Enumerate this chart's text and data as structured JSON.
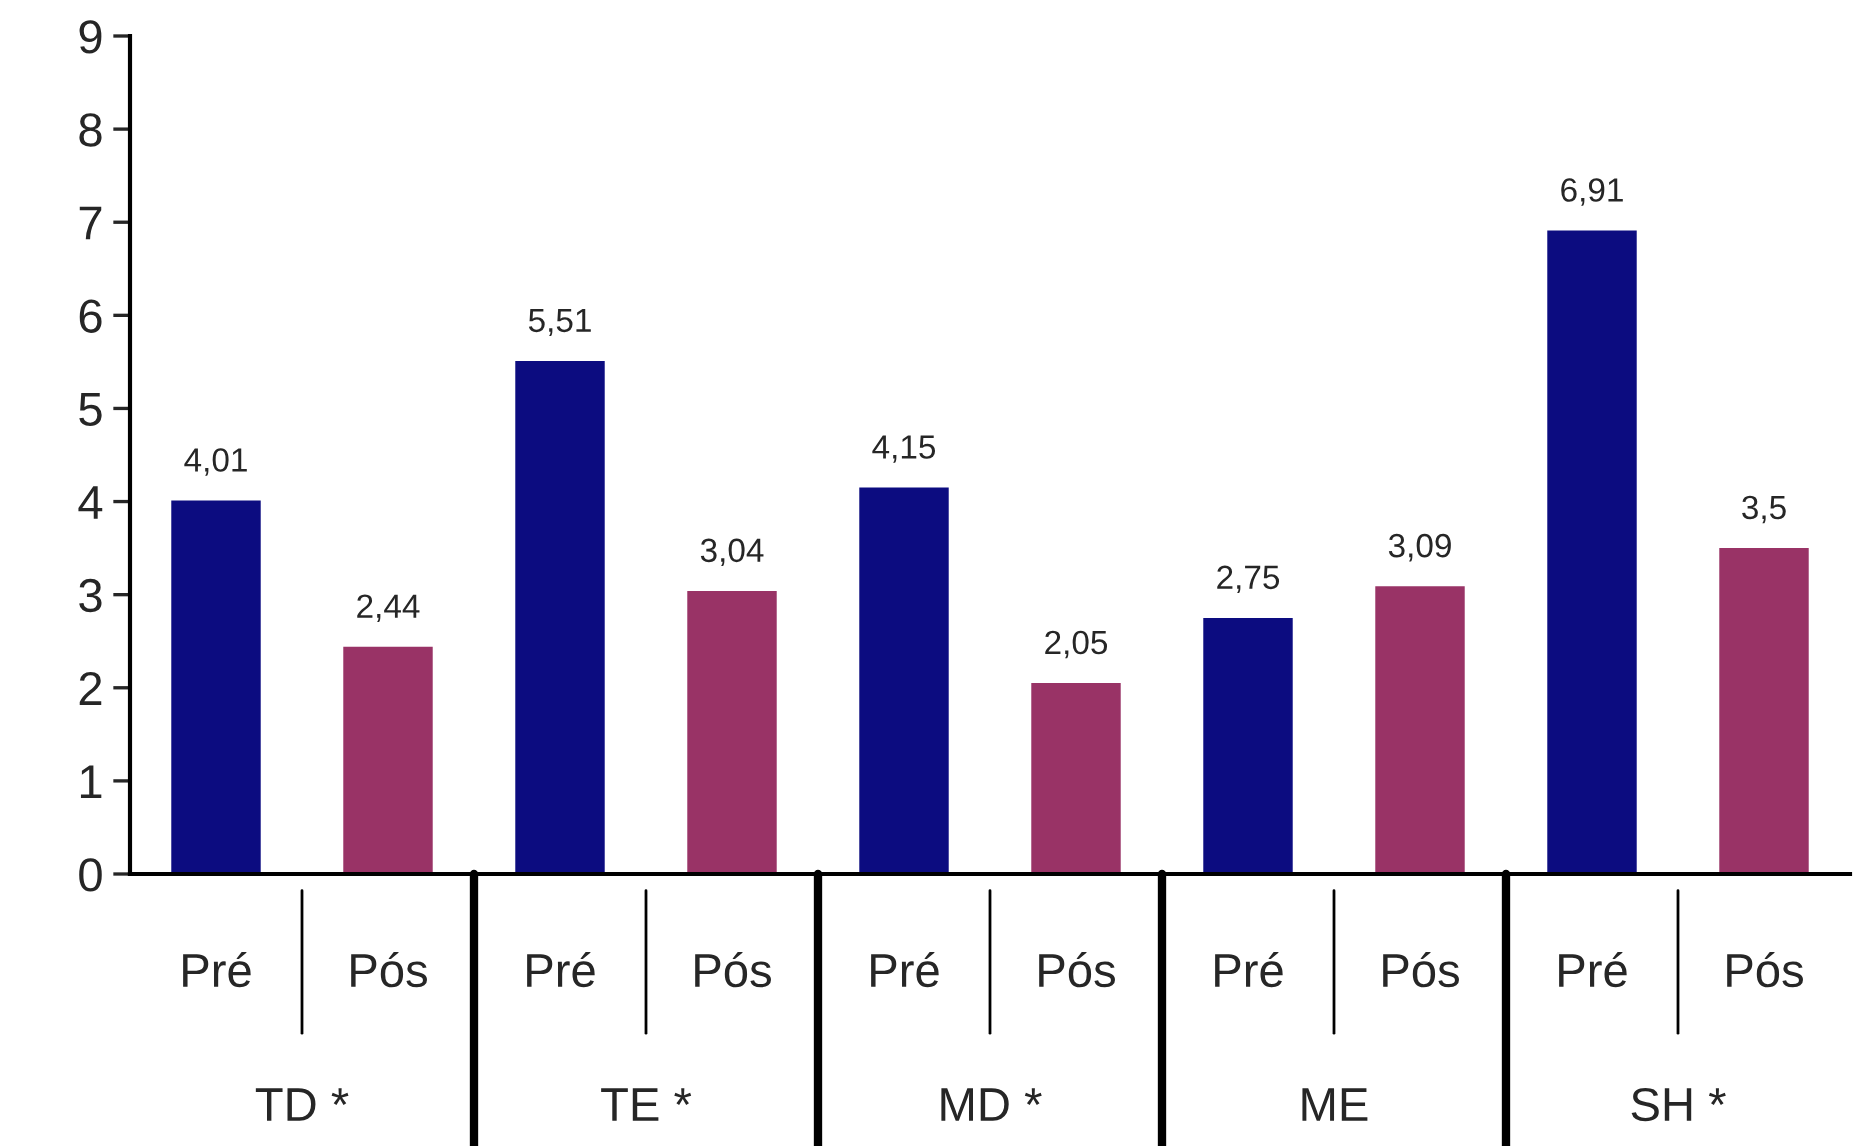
{
  "chart_data": {
    "type": "bar",
    "categories": [
      "TD *",
      "TE *",
      "MD *",
      "ME",
      "SH *"
    ],
    "series": [
      {
        "name": "Pré",
        "color": "#0c0c80",
        "values": [
          4.01,
          5.51,
          4.15,
          2.75,
          6.91
        ],
        "value_labels": [
          "4,01",
          "5,51",
          "4,15",
          "2,75",
          "6,91"
        ]
      },
      {
        "name": "Pós",
        "color": "#993366",
        "values": [
          2.44,
          3.04,
          2.05,
          3.09,
          3.5
        ],
        "value_labels": [
          "2,44",
          "3,04",
          "2,05",
          "3,09",
          "3,5"
        ]
      }
    ],
    "ylim": [
      0,
      9
    ],
    "yticks": [
      0,
      1,
      2,
      3,
      4,
      5,
      6,
      7,
      8,
      9
    ],
    "grid": false,
    "legend": false
  }
}
